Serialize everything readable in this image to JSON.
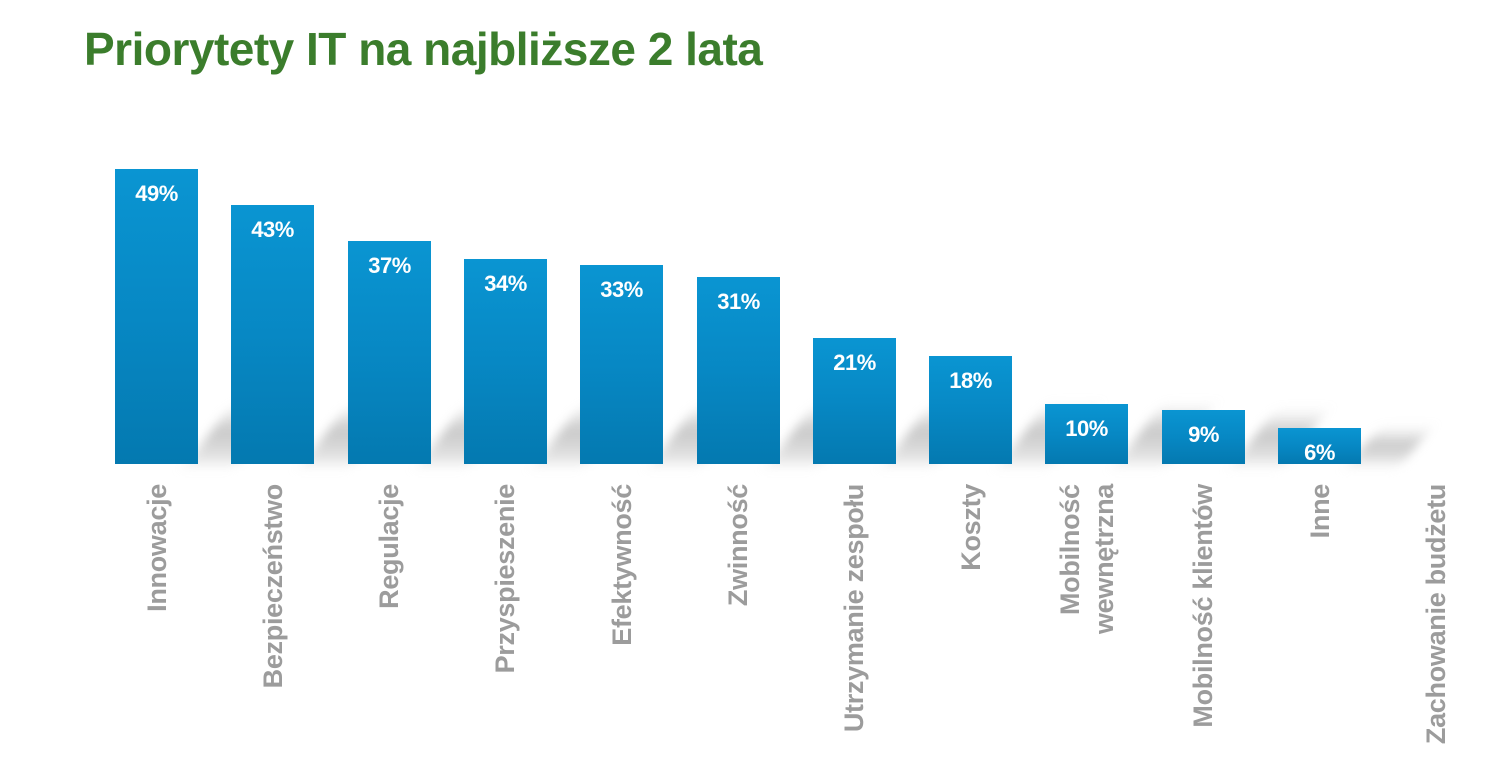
{
  "title": "Priorytety IT na najbliższe 2 lata",
  "colors": {
    "title": "#3b7d2c",
    "bar": "#0788c4",
    "bar_label": "#ffffff",
    "category_label": "#9c9c9c"
  },
  "bars": [
    {
      "label": "Innowacje",
      "value_label": "49%"
    },
    {
      "label": "Bezpieczeństwo",
      "value_label": "43%"
    },
    {
      "label": "Regulacje",
      "value_label": "37%"
    },
    {
      "label": "Przyspieszenie",
      "value_label": "34%"
    },
    {
      "label": "Efektywność",
      "value_label": "33%"
    },
    {
      "label": "Zwinność",
      "value_label": "31%"
    },
    {
      "label": "Utrzymanie zespołu",
      "value_label": "21%"
    },
    {
      "label": "Koszty",
      "value_label": "18%"
    },
    {
      "label": "Mobilność\nwewnętrzna",
      "value_label": "10%"
    },
    {
      "label": "Mobilność klientów",
      "value_label": "9%"
    },
    {
      "label": "Inne",
      "value_label": "6%"
    },
    {
      "label": "Zachowanie budżetu",
      "value_label": ""
    }
  ],
  "chart_data": {
    "type": "bar",
    "title": "Priorytety IT na najbliższe 2 lata",
    "categories": [
      "Innowacje",
      "Bezpieczeństwo",
      "Regulacje",
      "Przyspieszenie",
      "Efektywność",
      "Zwinność",
      "Utrzymanie zespołu",
      "Koszty",
      "Mobilność wewnętrzna",
      "Mobilność klientów",
      "Inne",
      "Zachowanie budżetu"
    ],
    "values": [
      49,
      43,
      37,
      34,
      33,
      31,
      21,
      18,
      10,
      9,
      6,
      null
    ],
    "unit": "%",
    "xlabel": "",
    "ylabel": "",
    "ylim": [
      0,
      50
    ],
    "grid": false,
    "legend": null,
    "data_labels": true
  }
}
